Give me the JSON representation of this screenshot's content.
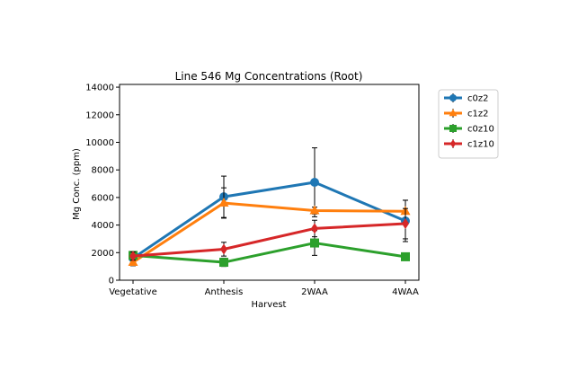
{
  "chart_data": {
    "type": "line",
    "title": "Line 546 Mg Concentrations (Root)",
    "xlabel": "Harvest",
    "ylabel": "Mg Conc. (ppm)",
    "categories": [
      "Vegetative",
      "Anthesis",
      "2WAA",
      "4WAA"
    ],
    "ylim": [
      0,
      14200
    ],
    "yticks": [
      0,
      2000,
      4000,
      6000,
      8000,
      10000,
      12000,
      14000
    ],
    "ytick_labels": [
      "0",
      "2000",
      "4000",
      "6000",
      "8000",
      "10000",
      "12000",
      "14000"
    ],
    "grid": false,
    "legend_position": "outside right, top",
    "series": [
      {
        "name": "c0z2",
        "color": "#1f77b4",
        "marker": "circle",
        "values": [
          1600,
          6050,
          7100,
          4300
        ],
        "errors": [
          300,
          1500,
          2500,
          1500
        ]
      },
      {
        "name": "c1z2",
        "color": "#ff7f0e",
        "marker": "triangle",
        "values": [
          1300,
          5600,
          5050,
          5000
        ],
        "errors": [
          250,
          1100,
          250,
          800
        ]
      },
      {
        "name": "c0z10",
        "color": "#2ca02c",
        "marker": "square",
        "values": [
          1800,
          1300,
          2700,
          1700
        ],
        "errors": [
          250,
          300,
          900,
          200
        ]
      },
      {
        "name": "c1z10",
        "color": "#d62728",
        "marker": "diamond",
        "values": [
          1750,
          2250,
          3750,
          4100
        ],
        "errors": [
          300,
          500,
          600,
          1100
        ]
      }
    ]
  }
}
